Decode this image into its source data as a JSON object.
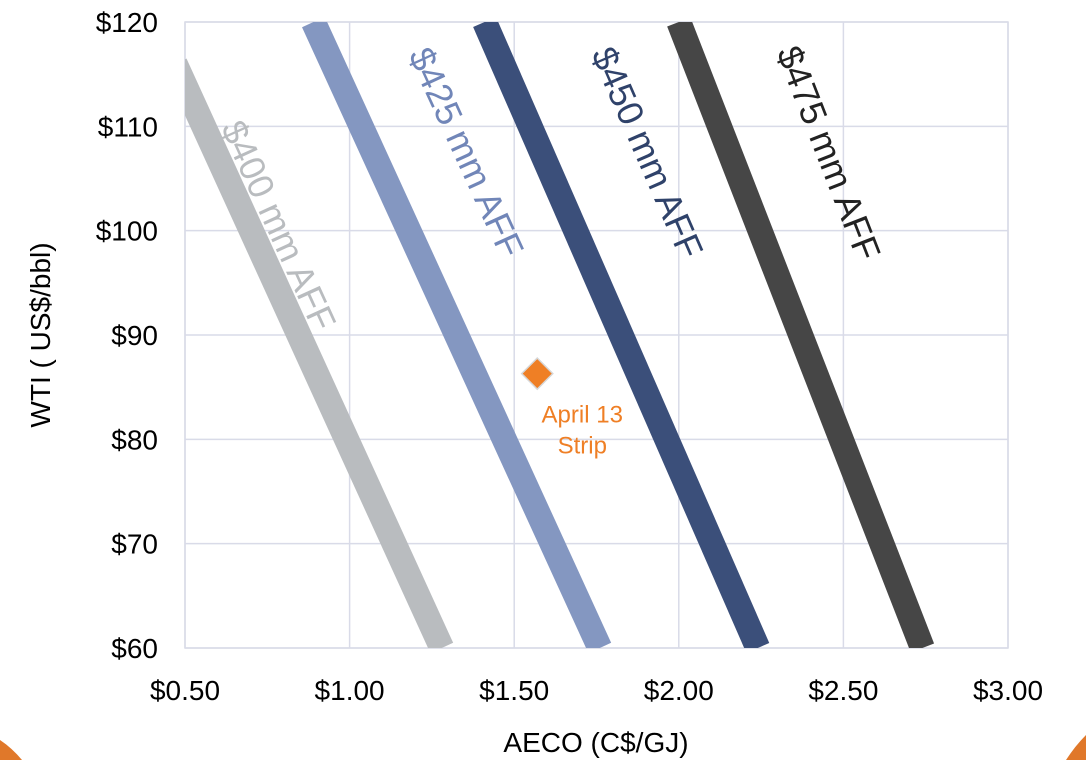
{
  "chart_data": {
    "type": "line",
    "xlabel": "AECO (C$/GJ)",
    "ylabel": "WTI ( US$/bbl)",
    "xlim": [
      0.5,
      3.0
    ],
    "ylim": [
      60,
      120
    ],
    "x_ticks": [
      "$0.50",
      "$1.00",
      "$1.50",
      "$2.00",
      "$2.50",
      "$3.00"
    ],
    "x_tick_values": [
      0.5,
      1.0,
      1.5,
      2.0,
      2.5,
      3.0
    ],
    "y_ticks": [
      "$60",
      "$70",
      "$80",
      "$90",
      "$100",
      "$110",
      "$120"
    ],
    "y_tick_values": [
      60,
      70,
      80,
      90,
      100,
      110,
      120
    ],
    "grid": true,
    "series": [
      {
        "name": "$400 mm AFF",
        "color": "#b9bcbf",
        "label_color": "#b9bcbf",
        "x": [
          0.47,
          1.28
        ],
        "y": [
          116,
          60
        ]
      },
      {
        "name": "$425 mm AFF",
        "color": "#8497c1",
        "label_color": "#7186b8",
        "x": [
          0.89,
          1.76
        ],
        "y": [
          120,
          60
        ]
      },
      {
        "name": "$450 mm AFF",
        "color": "#3b4f7a",
        "label_color": "#2f426a",
        "x": [
          1.41,
          2.24
        ],
        "y": [
          120,
          60
        ]
      },
      {
        "name": "$475 mm AFF",
        "color": "#464646",
        "label_color": "#222222",
        "x": [
          2.0,
          2.74
        ],
        "y": [
          120,
          60
        ]
      }
    ],
    "points": [
      {
        "label_line1": "April 13",
        "label_line2": "Strip",
        "x": 1.57,
        "y": 86.3,
        "color": "#ef7f25"
      }
    ]
  }
}
